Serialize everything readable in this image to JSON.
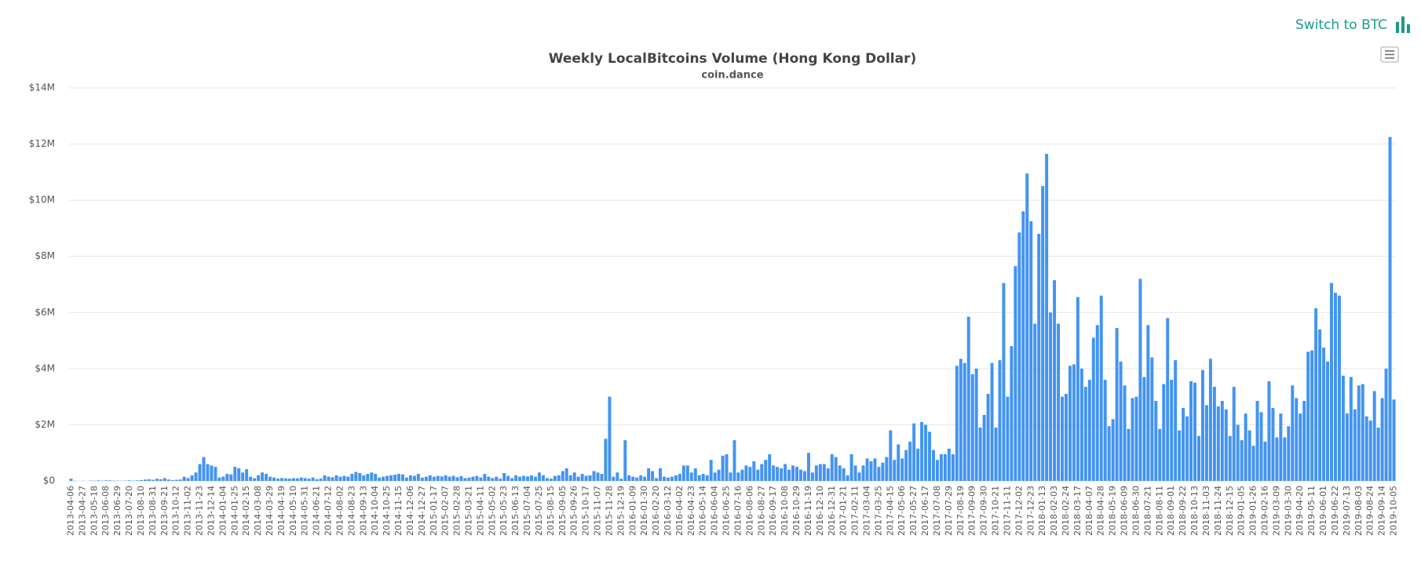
{
  "toggle_button": {
    "label": "Switch to BTC"
  },
  "chart_data": {
    "type": "bar",
    "title": "Weekly LocalBitcoins Volume (Hong Kong Dollar)",
    "subtitle": "coin.dance",
    "color": "#4394f0",
    "grid": true,
    "ylim": [
      0,
      14000000
    ],
    "yticks": [
      {
        "value": 0,
        "label": "$0"
      },
      {
        "value": 2000000,
        "label": "$2M"
      },
      {
        "value": 4000000,
        "label": "$4M"
      },
      {
        "value": 6000000,
        "label": "$6M"
      },
      {
        "value": 8000000,
        "label": "$8M"
      },
      {
        "value": 10000000,
        "label": "$10M"
      },
      {
        "value": 12000000,
        "label": "$12M"
      },
      {
        "value": 14000000,
        "label": "$14M"
      }
    ],
    "categories": [
      "2013-04-06",
      null,
      null,
      "2013-04-27",
      null,
      null,
      "2013-05-18",
      null,
      null,
      "2013-06-08",
      null,
      null,
      "2013-06-29",
      null,
      null,
      "2013-07-20",
      null,
      null,
      "2013-08-10",
      null,
      null,
      "2013-08-31",
      null,
      null,
      "2013-09-21",
      null,
      null,
      "2013-10-12",
      null,
      null,
      "2013-11-02",
      null,
      null,
      "2013-11-23",
      null,
      null,
      "2013-12-14",
      null,
      null,
      "2014-01-04",
      null,
      null,
      "2014-01-25",
      null,
      null,
      "2014-02-15",
      null,
      null,
      "2014-03-08",
      null,
      null,
      "2014-03-29",
      null,
      null,
      "2014-04-19",
      null,
      null,
      "2014-05-10",
      null,
      null,
      "2014-05-31",
      null,
      null,
      "2014-06-21",
      null,
      null,
      "2014-07-12",
      null,
      null,
      "2014-08-02",
      null,
      null,
      "2014-08-23",
      null,
      null,
      "2014-09-13",
      null,
      null,
      "2014-10-04",
      null,
      null,
      "2014-10-25",
      null,
      null,
      "2014-11-15",
      null,
      null,
      "2014-12-06",
      null,
      null,
      "2014-12-27",
      null,
      null,
      "2015-01-17",
      null,
      null,
      "2015-02-07",
      null,
      null,
      "2015-02-28",
      null,
      null,
      "2015-03-21",
      null,
      null,
      "2015-04-11",
      null,
      null,
      "2015-05-02",
      null,
      null,
      "2015-05-23",
      null,
      null,
      "2015-06-13",
      null,
      null,
      "2015-07-04",
      null,
      null,
      "2015-07-25",
      null,
      null,
      "2015-08-15",
      null,
      null,
      "2015-09-05",
      null,
      null,
      "2015-09-26",
      null,
      null,
      "2015-10-17",
      null,
      null,
      "2015-11-07",
      null,
      null,
      "2015-11-28",
      null,
      null,
      "2015-12-19",
      null,
      null,
      "2016-01-09",
      null,
      null,
      "2016-01-30",
      null,
      null,
      "2016-02-20",
      null,
      null,
      "2016-03-12",
      null,
      null,
      "2016-04-02",
      null,
      null,
      "2016-04-23",
      null,
      null,
      "2016-05-14",
      null,
      null,
      "2016-06-04",
      null,
      null,
      "2016-06-25",
      null,
      null,
      "2016-07-16",
      null,
      null,
      "2016-08-06",
      null,
      null,
      "2016-08-27",
      null,
      null,
      "2016-09-17",
      null,
      null,
      "2016-10-08",
      null,
      null,
      "2016-10-29",
      null,
      null,
      "2016-11-19",
      null,
      null,
      "2016-12-10",
      null,
      null,
      "2016-12-31",
      null,
      null,
      "2017-01-21",
      null,
      null,
      "2017-02-11",
      null,
      null,
      "2017-03-04",
      null,
      null,
      "2017-03-25",
      null,
      null,
      "2017-04-15",
      null,
      null,
      "2017-05-06",
      null,
      null,
      "2017-05-27",
      null,
      null,
      "2017-06-17",
      null,
      null,
      "2017-07-08",
      null,
      null,
      "2017-07-29",
      null,
      null,
      "2017-08-19",
      null,
      null,
      "2017-09-09",
      null,
      null,
      "2017-09-30",
      null,
      null,
      "2017-10-21",
      null,
      null,
      "2017-11-11",
      null,
      null,
      "2017-12-02",
      null,
      null,
      "2017-12-23",
      null,
      null,
      "2018-01-13",
      null,
      null,
      "2018-02-03",
      null,
      null,
      "2018-02-24",
      null,
      null,
      "2018-03-17",
      null,
      null,
      "2018-04-07",
      null,
      null,
      "2018-04-28",
      null,
      null,
      "2018-05-19",
      null,
      null,
      "2018-06-09",
      null,
      null,
      "2018-06-30",
      null,
      null,
      "2018-07-21",
      null,
      null,
      "2018-08-11",
      null,
      null,
      "2018-09-01",
      null,
      null,
      "2018-09-22",
      null,
      null,
      "2018-10-13",
      null,
      null,
      "2018-11-03",
      null,
      null,
      "2018-11-24",
      null,
      null,
      "2018-12-15",
      null,
      null,
      "2019-01-05",
      null,
      null,
      "2019-01-26",
      null,
      null,
      "2019-02-16",
      null,
      null,
      "2019-03-09",
      null,
      null,
      "2019-03-30",
      null,
      null,
      "2019-04-20",
      null,
      null,
      "2019-05-11",
      null,
      null,
      "2019-06-01",
      null,
      null,
      "2019-06-22",
      null,
      null,
      "2019-07-13",
      null,
      null,
      "2019-08-03",
      null,
      null,
      "2019-08-24",
      null,
      null,
      "2019-09-14",
      null,
      null,
      "2019-10-05"
    ],
    "values": [
      80000,
      5000,
      0,
      5000,
      0,
      10000,
      10000,
      20000,
      10000,
      20000,
      20000,
      10000,
      10000,
      5000,
      10000,
      20000,
      10000,
      20000,
      30000,
      50000,
      60000,
      40000,
      80000,
      60000,
      100000,
      50000,
      30000,
      40000,
      50000,
      150000,
      100000,
      200000,
      300000,
      600000,
      850000,
      600000,
      550000,
      500000,
      120000,
      150000,
      250000,
      230000,
      500000,
      450000,
      300000,
      420000,
      150000,
      100000,
      200000,
      300000,
      250000,
      150000,
      120000,
      80000,
      100000,
      90000,
      80000,
      100000,
      90000,
      120000,
      100000,
      80000,
      120000,
      60000,
      80000,
      200000,
      150000,
      130000,
      200000,
      150000,
      180000,
      150000,
      250000,
      320000,
      280000,
      200000,
      250000,
      300000,
      250000,
      120000,
      150000,
      180000,
      200000,
      220000,
      250000,
      230000,
      120000,
      200000,
      180000,
      250000,
      120000,
      150000,
      200000,
      150000,
      180000,
      160000,
      200000,
      150000,
      180000,
      130000,
      170000,
      100000,
      120000,
      150000,
      180000,
      120000,
      250000,
      150000,
      100000,
      150000,
      80000,
      280000,
      180000,
      100000,
      200000,
      150000,
      180000,
      160000,
      200000,
      150000,
      300000,
      200000,
      100000,
      80000,
      180000,
      200000,
      350000,
      450000,
      200000,
      300000,
      150000,
      250000,
      180000,
      200000,
      350000,
      300000,
      250000,
      1500000,
      3000000,
      150000,
      300000,
      80000,
      1450000,
      200000,
      150000,
      120000,
      200000,
      150000,
      450000,
      350000,
      100000,
      450000,
      150000,
      120000,
      150000,
      200000,
      250000,
      550000,
      550000,
      300000,
      450000,
      200000,
      250000,
      200000,
      750000,
      300000,
      400000,
      900000,
      950000,
      300000,
      1450000,
      300000,
      400000,
      550000,
      500000,
      700000,
      400000,
      600000,
      750000,
      950000,
      550000,
      500000,
      450000,
      600000,
      400000,
      550000,
      500000,
      400000,
      350000,
      1000000,
      300000,
      550000,
      600000,
      600000,
      450000,
      950000,
      850000,
      550000,
      450000,
      200000,
      950000,
      550000,
      300000,
      550000,
      800000,
      700000,
      800000,
      500000,
      650000,
      850000,
      1800000,
      750000,
      1300000,
      800000,
      1100000,
      1400000,
      2050000,
      1150000,
      2100000,
      2000000,
      1750000,
      1100000,
      750000,
      950000,
      950000,
      1150000,
      950000,
      4100000,
      4350000,
      4200000,
      5850000,
      3800000,
      4000000,
      1900000,
      2350000,
      3100000,
      4200000,
      1900000,
      4300000,
      7050000,
      3000000,
      4800000,
      7650000,
      8850000,
      9600000,
      10950000,
      9250000,
      5600000,
      8800000,
      10500000,
      11650000,
      6000000,
      7150000,
      5600000,
      3000000,
      3100000,
      4100000,
      4150000,
      6550000,
      4000000,
      3350000,
      3600000,
      5100000,
      5550000,
      6600000,
      3600000,
      1950000,
      2200000,
      5450000,
      4250000,
      3400000,
      1850000,
      2950000,
      3000000,
      7200000,
      3700000,
      5550000,
      4400000,
      2850000,
      1850000,
      3450000,
      5800000,
      3600000,
      4300000,
      1800000,
      2600000,
      2300000,
      3550000,
      3500000,
      1600000,
      3950000,
      2700000,
      4350000,
      3350000,
      2650000,
      2850000,
      2550000,
      1600000,
      3350000,
      2000000,
      1450000,
      2400000,
      1800000,
      1250000,
      2850000,
      2450000,
      1400000,
      3550000,
      2600000,
      1550000,
      2400000,
      1550000,
      1950000,
      3400000,
      2950000,
      2400000,
      2850000,
      4600000,
      4650000,
      6150000,
      5400000,
      4750000,
      4250000,
      7050000,
      6700000,
      6600000,
      3750000,
      2400000,
      3700000,
      2550000,
      3400000,
      3450000,
      2300000,
      2150000,
      3200000,
      1900000,
      2950000,
      4000000,
      12250000,
      2900000
    ]
  }
}
